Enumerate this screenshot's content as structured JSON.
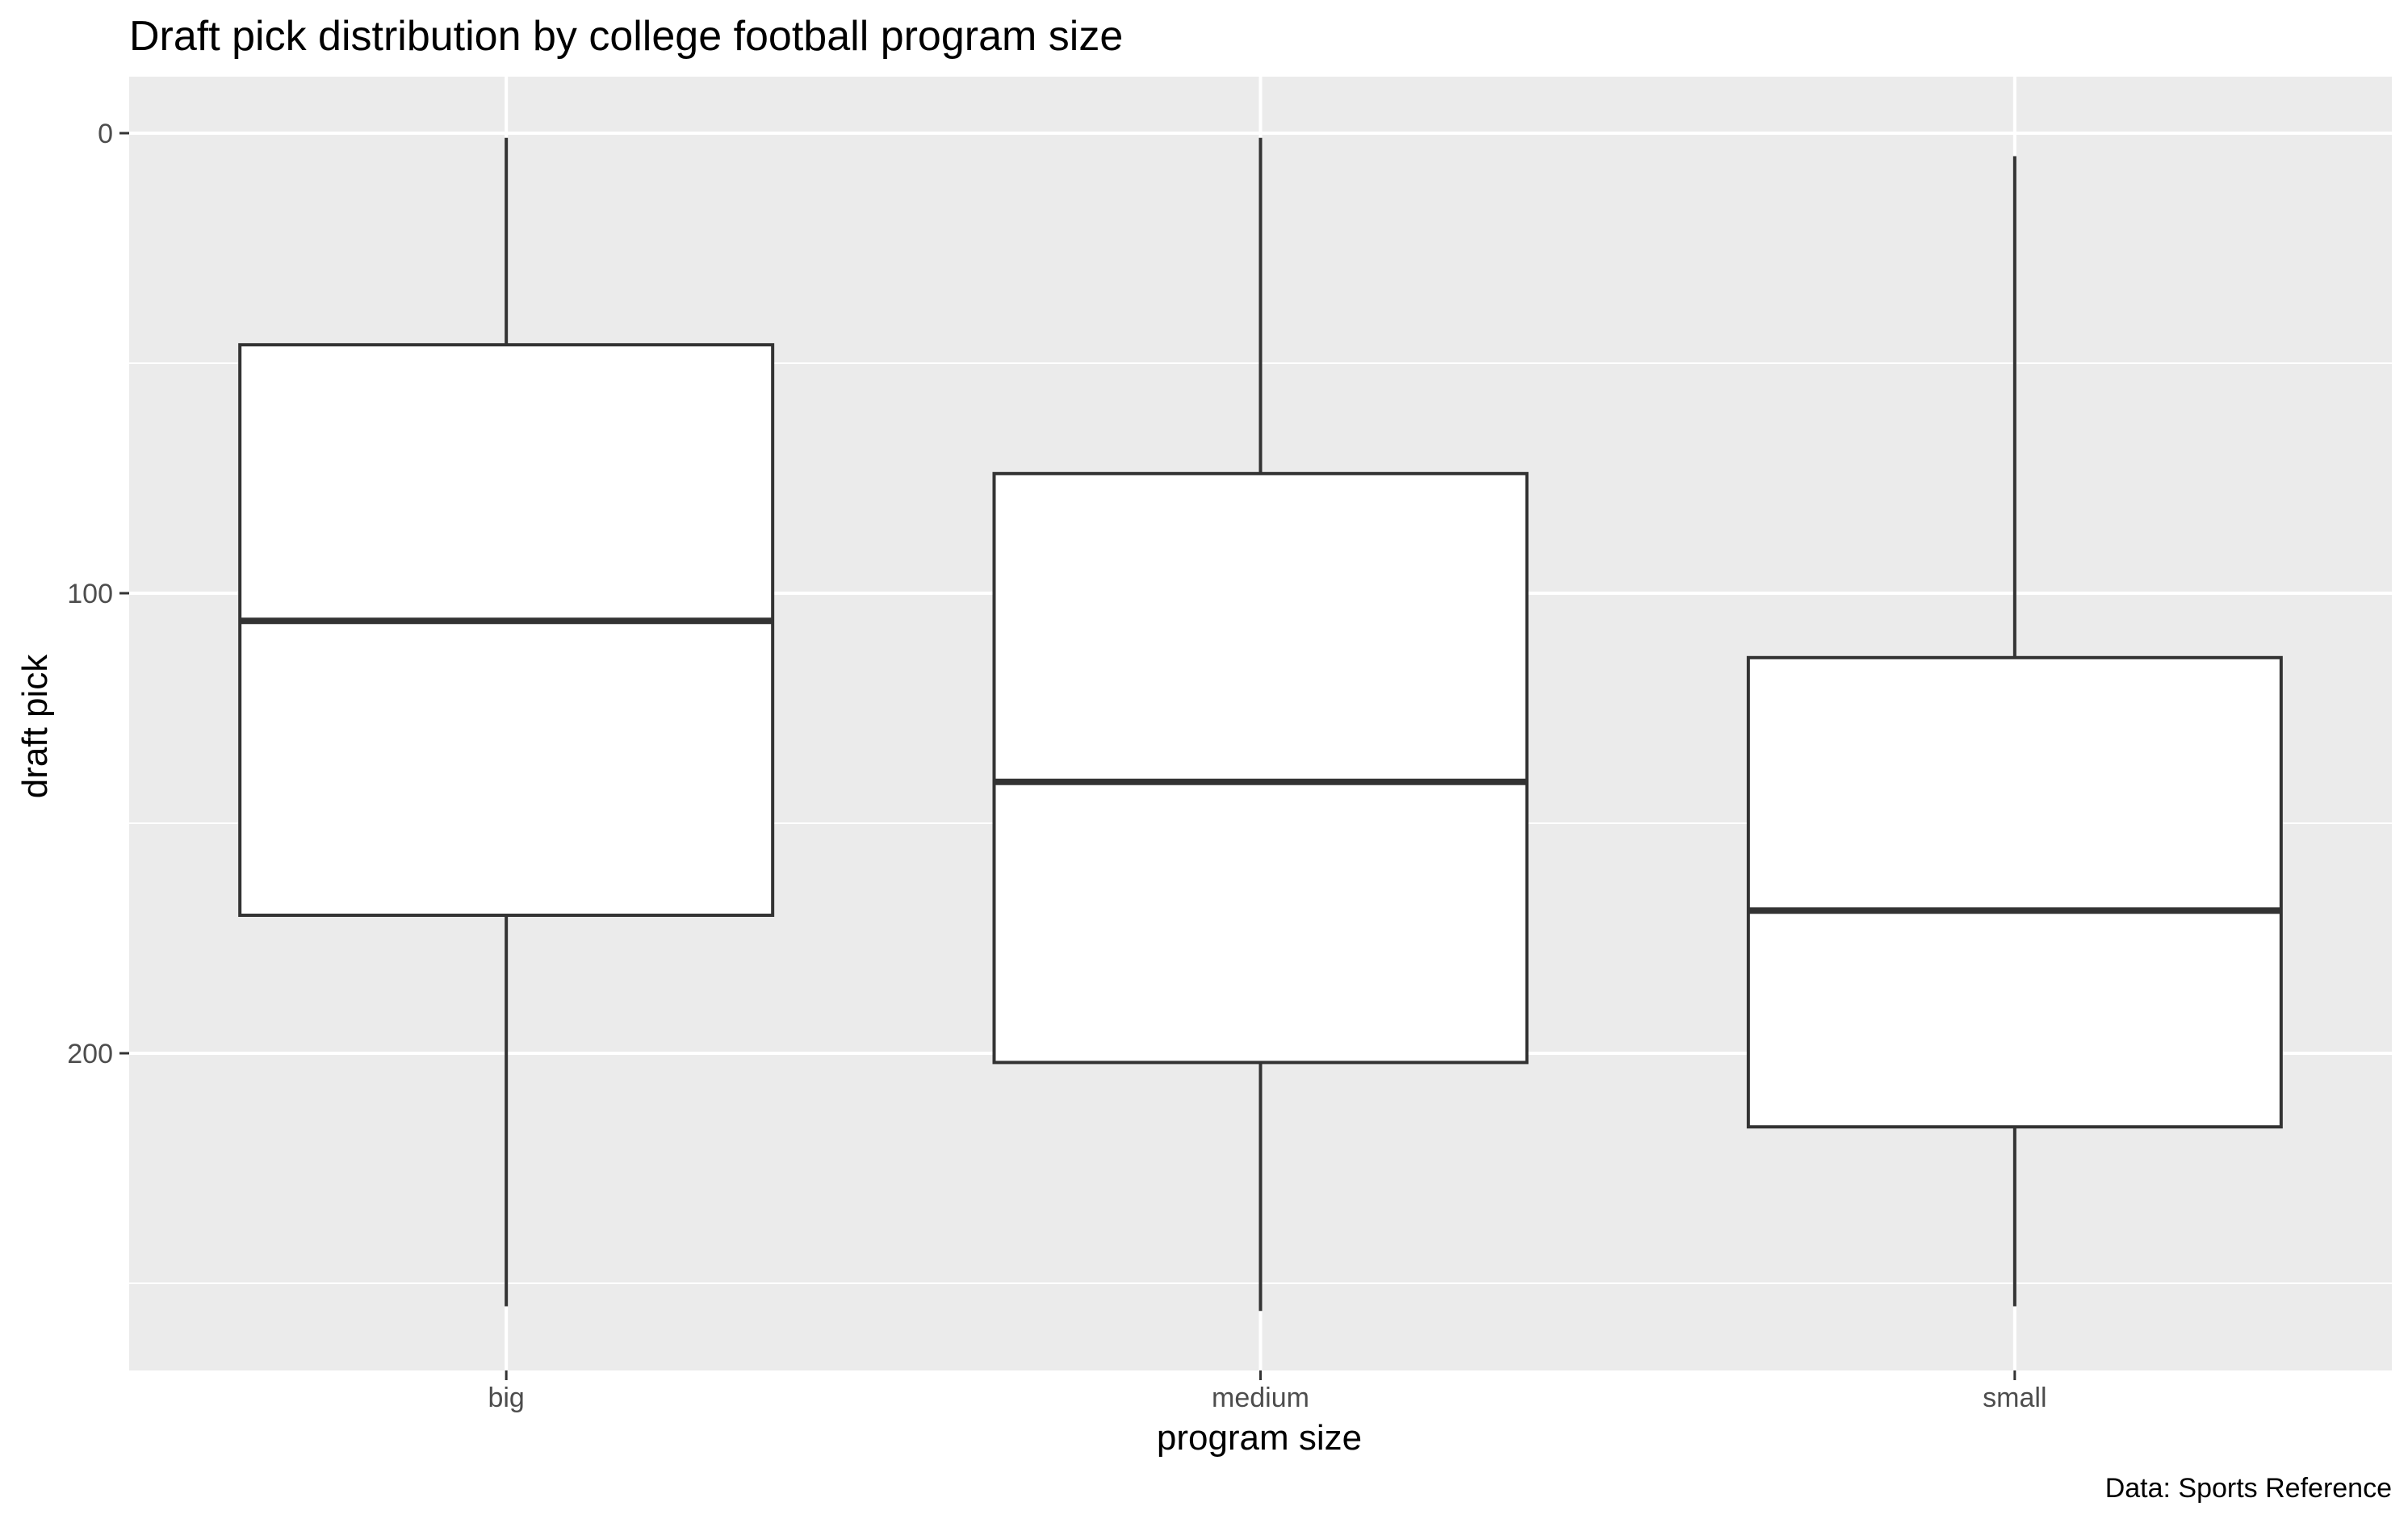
{
  "chart_data": {
    "type": "boxplot",
    "title": "Draft pick distribution by college football program size",
    "xlabel": "program size",
    "ylabel": "draft pick",
    "caption": "Data: Sports Reference",
    "categories": [
      "big",
      "medium",
      "small"
    ],
    "y_reversed": true,
    "ylim": [
      0,
      268
    ],
    "yticks": [
      0,
      100,
      200
    ],
    "ytick_labels": [
      "0",
      "100",
      "200"
    ],
    "grid": true,
    "boxes": [
      {
        "category": "big",
        "min": 1,
        "q1": 46,
        "median": 106,
        "q3": 170,
        "max": 255
      },
      {
        "category": "medium",
        "min": 1,
        "q1": 74,
        "median": 141,
        "q3": 202,
        "max": 256
      },
      {
        "category": "small",
        "min": 5,
        "q1": 114,
        "median": 169,
        "q3": 216,
        "max": 255
      }
    ],
    "colors": {
      "panel_background": "#ebebeb",
      "grid": "#ffffff",
      "box_fill": "#ffffff",
      "box_stroke": "#333333"
    }
  }
}
